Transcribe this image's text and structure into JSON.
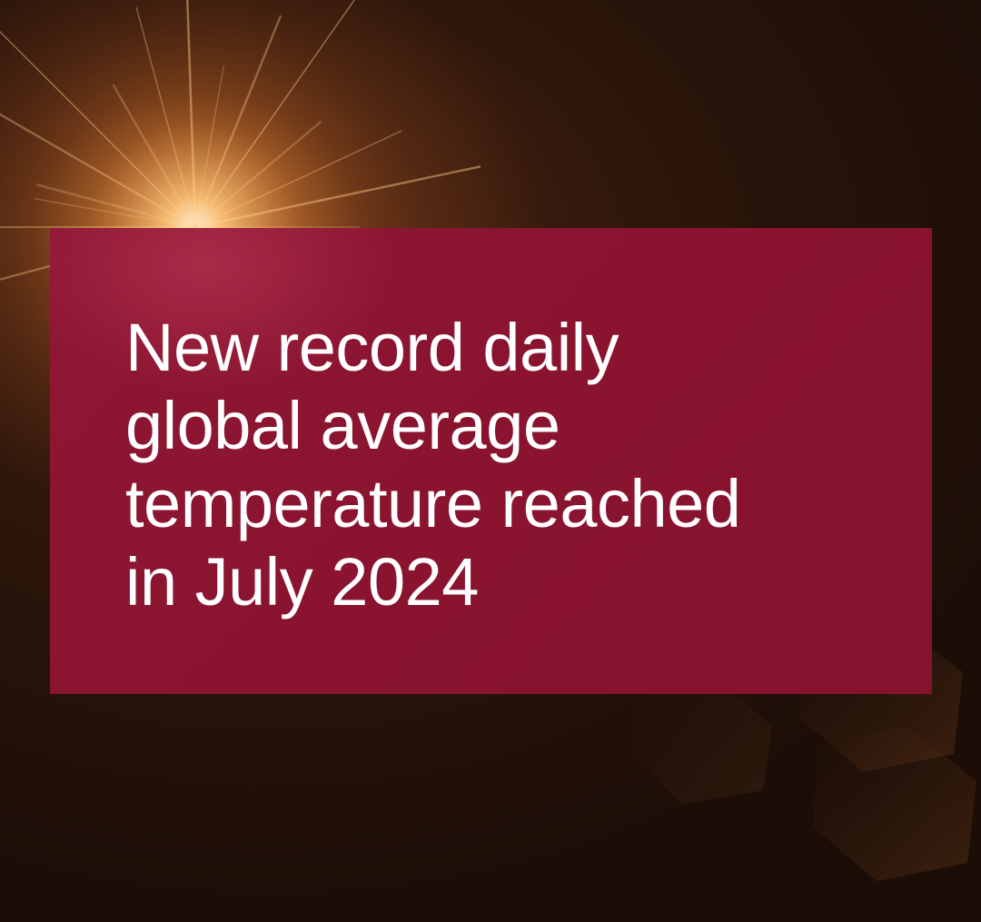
{
  "headline": {
    "lines": [
      "New record daily",
      "global average",
      "temperature reached",
      "in July 2024"
    ]
  },
  "colors": {
    "panel": "#8b1530",
    "background": "#1e0f08",
    "flare": "#ffb060",
    "text": "#ffffff"
  }
}
